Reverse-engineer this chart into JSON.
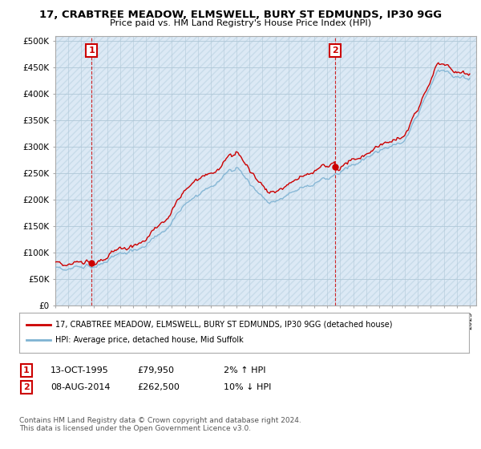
{
  "title": "17, CRABTREE MEADOW, ELMSWELL, BURY ST EDMUNDS, IP30 9GG",
  "subtitle": "Price paid vs. HM Land Registry's House Price Index (HPI)",
  "ylim": [
    0,
    510000
  ],
  "yticks": [
    0,
    50000,
    100000,
    150000,
    200000,
    250000,
    300000,
    350000,
    400000,
    450000,
    500000
  ],
  "ytick_labels": [
    "£0",
    "£50K",
    "£100K",
    "£150K",
    "£200K",
    "£250K",
    "£300K",
    "£350K",
    "£400K",
    "£450K",
    "£500K"
  ],
  "hpi_color": "#7fb3d3",
  "price_color": "#cc0000",
  "annotation_box_color": "#cc0000",
  "chart_bg_color": "#dce9f5",
  "legend_line1": "17, CRABTREE MEADOW, ELMSWELL, BURY ST EDMUNDS, IP30 9GG (detached house)",
  "legend_line2": "HPI: Average price, detached house, Mid Suffolk",
  "annotation1_date": "13-OCT-1995",
  "annotation1_price": "£79,950",
  "annotation1_hpi": "2% ↑ HPI",
  "annotation2_date": "08-AUG-2014",
  "annotation2_price": "£262,500",
  "annotation2_hpi": "10% ↓ HPI",
  "footer": "Contains HM Land Registry data © Crown copyright and database right 2024.\nThis data is licensed under the Open Government Licence v3.0.",
  "purchase1_year": 1995.79,
  "purchase1_price": 79950,
  "purchase2_year": 2014.6,
  "purchase2_price": 262500,
  "background_color": "#ffffff",
  "grid_color": "#b0c8d8",
  "hatch_color": "#c8dcea"
}
